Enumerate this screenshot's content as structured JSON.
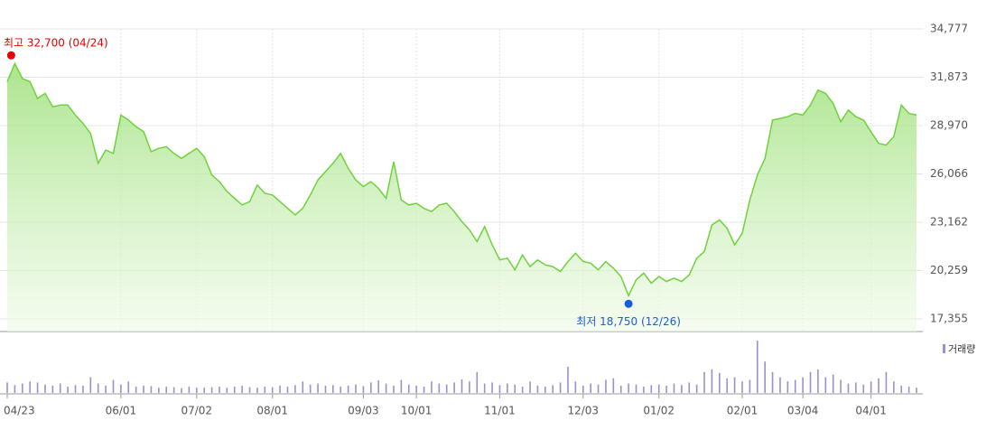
{
  "chart_data": {
    "type": "stock",
    "categories": [
      "04/23",
      null,
      null,
      null,
      null,
      null,
      null,
      null,
      null,
      null,
      null,
      null,
      null,
      null,
      null,
      "06/01",
      null,
      null,
      null,
      null,
      null,
      null,
      null,
      null,
      null,
      "07/02",
      null,
      null,
      null,
      null,
      null,
      null,
      null,
      null,
      null,
      "08/01",
      null,
      null,
      null,
      null,
      null,
      null,
      null,
      null,
      null,
      null,
      null,
      "09/03",
      null,
      null,
      null,
      null,
      null,
      null,
      "10/01",
      null,
      null,
      null,
      null,
      null,
      null,
      null,
      null,
      null,
      null,
      "11/01",
      null,
      null,
      null,
      null,
      null,
      null,
      null,
      null,
      null,
      null,
      "12/03",
      null,
      null,
      null,
      null,
      null,
      null,
      null,
      null,
      null,
      "01/02",
      null,
      null,
      null,
      null,
      null,
      null,
      null,
      null,
      null,
      null,
      "02/01",
      null,
      null,
      null,
      null,
      null,
      null,
      null,
      "03/04",
      null,
      null,
      null,
      null,
      null,
      null,
      null,
      null,
      "04/01",
      null,
      null,
      null,
      null,
      null,
      null
    ],
    "series": [
      {
        "color": "#6fd23c",
        "values": [
          31600,
          32700,
          31800,
          31600,
          30600,
          30900,
          30100,
          30200,
          30200,
          29600,
          29100,
          28500,
          26700,
          27500,
          27300,
          29600,
          29300,
          28900,
          28600,
          27400,
          27600,
          27700,
          27300,
          27000,
          27300,
          27600,
          27100,
          26000,
          25600,
          25000,
          24600,
          24200,
          24400,
          25400,
          24900,
          24800,
          24400,
          24000,
          23600,
          24000,
          24800,
          25700,
          26200,
          26700,
          27300,
          26400,
          25700,
          25300,
          25600,
          25200,
          24600,
          26800,
          24500,
          24200,
          24300,
          24000,
          23800,
          24200,
          24300,
          23800,
          23200,
          22700,
          22000,
          22900,
          21800,
          20900,
          21000,
          20300,
          21200,
          20500,
          20900,
          20600,
          20500,
          20200,
          20800,
          21300,
          20800,
          20700,
          20300,
          20800,
          20400,
          19900,
          18750,
          19700,
          20100,
          19500,
          19900,
          19600,
          19800,
          19600,
          20000,
          21000,
          21400,
          23000,
          23300,
          22800,
          21800,
          22500,
          24500,
          26000,
          27000,
          29300,
          29400,
          29500,
          29700,
          29600,
          30200,
          31100,
          30900,
          30300,
          29200,
          29900,
          29500,
          29300,
          28600,
          27900,
          27800,
          28300,
          30200,
          29700,
          29600
        ]
      },
      {
        "name": "거래량",
        "color": "#9b8fd0",
        "axis": "volume",
        "values": [
          20,
          15,
          18,
          22,
          20,
          16,
          14,
          18,
          12,
          15,
          14,
          30,
          18,
          14,
          25,
          16,
          22,
          12,
          14,
          13,
          10,
          12,
          11,
          9,
          12,
          10,
          10,
          11,
          12,
          10,
          12,
          14,
          11,
          10,
          12,
          11,
          14,
          12,
          15,
          22,
          16,
          18,
          14,
          15,
          12,
          14,
          16,
          13,
          20,
          24,
          18,
          14,
          25,
          16,
          14,
          12,
          22,
          18,
          16,
          20,
          26,
          22,
          40,
          18,
          20,
          15,
          18,
          16,
          12,
          22,
          14,
          12,
          15,
          20,
          50,
          22,
          14,
          18,
          16,
          25,
          28,
          14,
          18,
          16,
          12,
          15,
          16,
          14,
          18,
          15,
          20,
          16,
          40,
          45,
          38,
          28,
          30,
          22,
          25,
          100,
          60,
          40,
          30,
          22,
          25,
          30,
          40,
          45,
          30,
          35,
          25,
          18,
          20,
          16,
          22,
          28,
          40,
          22,
          14,
          12,
          10
        ]
      }
    ],
    "max_label": "최고 32,700 (04/24)",
    "min_label": "최저 18,750 (12/26)",
    "ylim": [
      17355,
      34777
    ],
    "yticks": [
      {
        "value": 17355,
        "label": "17,355"
      },
      {
        "value": 20259,
        "label": "20,259"
      },
      {
        "value": 23162,
        "label": "23,162"
      },
      {
        "value": 26066,
        "label": "26,066"
      },
      {
        "value": 28970,
        "label": "28,970"
      },
      {
        "value": 31873,
        "label": "31,873"
      },
      {
        "value": 34777,
        "label": "34,777"
      }
    ],
    "grid": true
  }
}
